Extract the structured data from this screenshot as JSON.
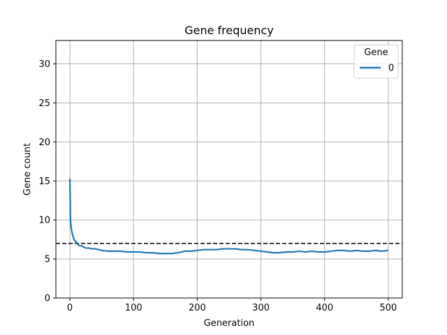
{
  "chart_data": {
    "type": "line",
    "title": "Gene frequency",
    "xlabel": "Generation",
    "ylabel": "Gene count",
    "xlim": [
      -22,
      522
    ],
    "ylim": [
      0,
      33
    ],
    "xticks": [
      0,
      100,
      200,
      300,
      400,
      500
    ],
    "yticks": [
      0,
      5,
      10,
      15,
      20,
      25,
      30
    ],
    "grid": true,
    "legend": {
      "title": "Gene",
      "placement": "top-right"
    },
    "reference_line": {
      "y": 7,
      "style": "dashed",
      "color": "#000000"
    },
    "series": [
      {
        "name": "0",
        "color": "#1f77b4",
        "x": [
          0,
          1,
          2,
          3,
          4,
          5,
          6,
          8,
          10,
          12,
          15,
          18,
          20,
          25,
          30,
          35,
          40,
          45,
          50,
          60,
          70,
          80,
          90,
          100,
          110,
          120,
          130,
          140,
          150,
          160,
          170,
          180,
          190,
          200,
          210,
          220,
          230,
          240,
          250,
          260,
          270,
          280,
          290,
          300,
          310,
          320,
          330,
          340,
          350,
          360,
          370,
          380,
          390,
          400,
          410,
          420,
          430,
          440,
          450,
          460,
          470,
          480,
          490,
          500
        ],
        "values": [
          15.3,
          9.9,
          9.1,
          8.5,
          8.2,
          7.9,
          7.6,
          7.3,
          7.2,
          6.9,
          6.7,
          6.7,
          6.6,
          6.4,
          6.4,
          6.3,
          6.3,
          6.2,
          6.1,
          6.0,
          6.0,
          6.0,
          5.9,
          5.9,
          5.9,
          5.8,
          5.8,
          5.7,
          5.7,
          5.7,
          5.8,
          6.0,
          6.0,
          6.1,
          6.2,
          6.2,
          6.2,
          6.3,
          6.3,
          6.3,
          6.2,
          6.2,
          6.1,
          6.0,
          5.9,
          5.8,
          5.8,
          5.9,
          5.9,
          6.0,
          5.9,
          6.0,
          5.9,
          5.9,
          6.0,
          6.1,
          6.1,
          6.0,
          6.1,
          6.0,
          6.0,
          6.1,
          6.0,
          6.1
        ]
      }
    ]
  }
}
